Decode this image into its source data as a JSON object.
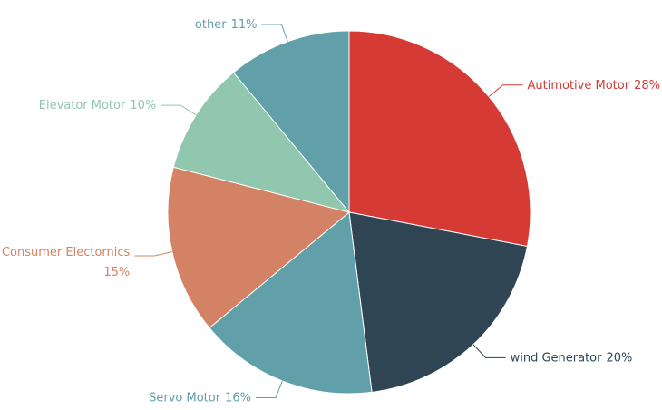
{
  "chart_data": {
    "type": "pie",
    "categories": [
      "Autimotive Motor",
      "wind Generator",
      "Servo Motor",
      "Consumer Electornics",
      "Elevator Motor",
      "other"
    ],
    "values": [
      28,
      20,
      16,
      15,
      10,
      11
    ],
    "value_labels": [
      "28%",
      "20%",
      "16%",
      "15%",
      "10%",
      "11%"
    ],
    "colors": [
      "#d63a35",
      "#2f4554",
      "#61a0a8",
      "#d48265",
      "#91c7ae",
      "#61a0a8"
    ]
  }
}
